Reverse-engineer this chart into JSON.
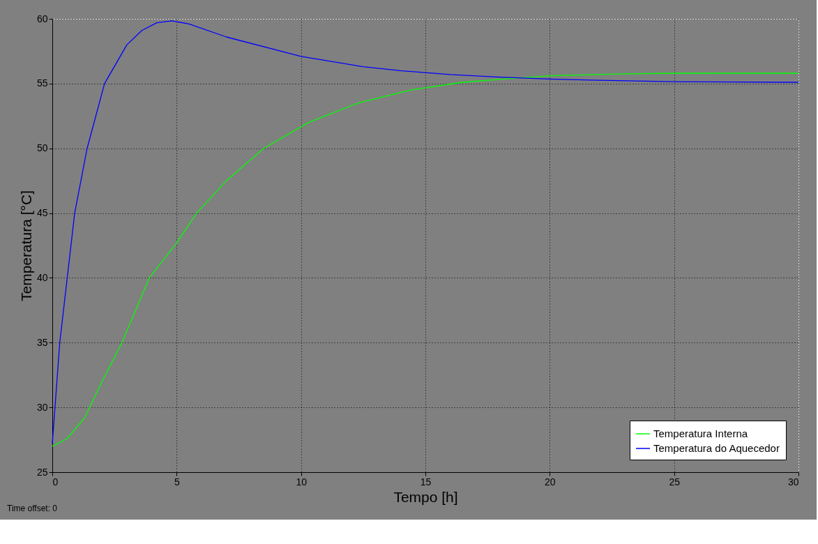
{
  "chart_data": {
    "type": "line",
    "xlabel": "Tempo [h]",
    "ylabel": "Temperatura [°C]",
    "xlim": [
      0,
      30
    ],
    "ylim": [
      25,
      60
    ],
    "xticks": [
      0,
      5,
      10,
      15,
      20,
      25,
      30
    ],
    "yticks": [
      25,
      30,
      35,
      40,
      45,
      50,
      55,
      60
    ],
    "grid": true,
    "legend": "bottom right",
    "line_style": "solid",
    "marker": "none",
    "annotations": [
      "Time offset:  0"
    ],
    "series": [
      {
        "name": "Temperatura Interna",
        "color": "#00ff00",
        "x": [
          0,
          0.6,
          1.3,
          2,
          2.8,
          3.9,
          5,
          5.8,
          7,
          8.5,
          10.3,
          12.3,
          14.4,
          16.5,
          18.5,
          20,
          23,
          25,
          30
        ],
        "values": [
          27,
          27.6,
          29.2,
          32,
          35,
          40,
          42.7,
          45,
          47.5,
          50,
          52,
          53.5,
          54.5,
          55.1,
          55.4,
          55.6,
          55.75,
          55.8,
          55.8
        ]
      },
      {
        "name": "Temperatura do Aquecedor",
        "color": "#0000ff",
        "x": [
          0,
          0.3,
          0.6,
          0.9,
          1.4,
          2.1,
          3,
          3.6,
          4.2,
          4.8,
          5.5,
          7,
          10,
          12.5,
          14,
          16,
          18,
          20,
          22,
          25,
          30
        ],
        "values": [
          27.2,
          35,
          40,
          45,
          50,
          55,
          58,
          59.1,
          59.7,
          59.85,
          59.6,
          58.6,
          57.1,
          56.3,
          56,
          55.7,
          55.5,
          55.35,
          55.25,
          55.15,
          55.1
        ]
      }
    ]
  }
}
